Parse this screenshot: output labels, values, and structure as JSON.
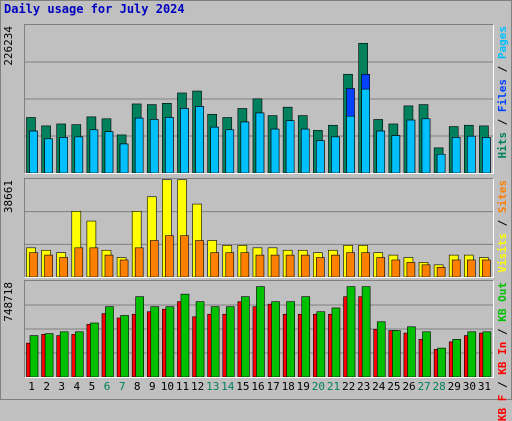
{
  "title": "Daily usage for July 2024",
  "colors": {
    "hits": "#00805c",
    "files": "#0040ff",
    "pages": "#00c0ff",
    "visits": "#ffff00",
    "sites": "#ff8000",
    "kb_in": "#ff0000",
    "kb_out": "#00c000",
    "weekend_label": "#00805c",
    "weekday_label": "#000000"
  },
  "chart_data": [
    {
      "type": "bar",
      "title": "Daily usage for July 2024",
      "ymax_label": "226234",
      "ymax": 226234,
      "legend": [
        {
          "text": "Hits",
          "sep": " / "
        },
        {
          "text": "Files",
          "sep": " / "
        },
        {
          "text": "Pages",
          "sep": ""
        }
      ],
      "categories": [
        "1",
        "2",
        "3",
        "4",
        "5",
        "6",
        "7",
        "8",
        "9",
        "10",
        "11",
        "12",
        "13",
        "14",
        "15",
        "16",
        "17",
        "18",
        "19",
        "20",
        "21",
        "22",
        "23",
        "24",
        "25",
        "26",
        "27",
        "28",
        "29",
        "30",
        "31"
      ],
      "series": [
        {
          "name": "Hits",
          "values": [
            86000,
            73000,
            76000,
            75000,
            87000,
            84000,
            59000,
            107000,
            106000,
            108000,
            124000,
            127000,
            91000,
            86000,
            100000,
            115000,
            89000,
            102000,
            89000,
            66000,
            74000,
            153000,
            201000,
            83000,
            76000,
            104000,
            106000,
            39000,
            72000,
            74000,
            73000
          ]
        },
        {
          "name": "Files",
          "values": [
            65000,
            53000,
            55000,
            56000,
            67000,
            64000,
            45000,
            85000,
            83000,
            86000,
            100000,
            103000,
            71000,
            67000,
            79000,
            93000,
            68000,
            81000,
            68000,
            50000,
            56000,
            131000,
            153000,
            65000,
            58000,
            82000,
            84000,
            29000,
            55000,
            57000,
            55000
          ]
        },
        {
          "name": "Pages",
          "values": [
            65000,
            53000,
            55000,
            56000,
            67000,
            64000,
            45000,
            85000,
            83000,
            86000,
            100000,
            103000,
            71000,
            67000,
            79000,
            93000,
            68000,
            81000,
            68000,
            50000,
            56000,
            88000,
            130000,
            65000,
            58000,
            82000,
            84000,
            29000,
            55000,
            57000,
            55000
          ]
        }
      ]
    },
    {
      "type": "bar",
      "ymax_label": "38661",
      "ymax": 38661,
      "legend": [
        {
          "text": "Visits",
          "sep": " / "
        },
        {
          "text": "Sites",
          "sep": ""
        }
      ],
      "categories": [
        "1",
        "2",
        "3",
        "4",
        "5",
        "6",
        "7",
        "8",
        "9",
        "10",
        "11",
        "12",
        "13",
        "14",
        "15",
        "16",
        "17",
        "18",
        "19",
        "20",
        "21",
        "22",
        "23",
        "24",
        "25",
        "26",
        "27",
        "28",
        "29",
        "30",
        "31"
      ],
      "series": [
        {
          "name": "Visits",
          "values": [
            12000,
            11000,
            10000,
            27000,
            23000,
            11000,
            8000,
            27000,
            33000,
            40000,
            40000,
            30000,
            15000,
            13000,
            13000,
            12000,
            12000,
            11000,
            11000,
            10000,
            11000,
            13000,
            13000,
            10000,
            9000,
            8000,
            6000,
            5000,
            9000,
            9000,
            8000
          ]
        },
        {
          "name": "Sites",
          "values": [
            10000,
            9000,
            8000,
            12000,
            12000,
            9000,
            7000,
            12000,
            15000,
            17000,
            17000,
            15000,
            10000,
            10000,
            10000,
            9000,
            9000,
            9000,
            9000,
            8000,
            9000,
            10000,
            10000,
            8000,
            7000,
            6000,
            5000,
            4000,
            7000,
            7000,
            7000
          ]
        }
      ]
    },
    {
      "type": "bar",
      "ymax_label": "748718",
      "ymax": 748718,
      "legend": [
        {
          "text": "KB F",
          "sep": " / "
        },
        {
          "text": "KB In",
          "sep": " / "
        },
        {
          "text": "KB Out",
          "sep": ""
        }
      ],
      "categories": [
        "1",
        "2",
        "3",
        "4",
        "5",
        "6",
        "7",
        "8",
        "9",
        "10",
        "11",
        "12",
        "13",
        "14",
        "15",
        "16",
        "17",
        "18",
        "19",
        "20",
        "21",
        "22",
        "23",
        "24",
        "25",
        "26",
        "27",
        "28",
        "29",
        "30",
        "31"
      ],
      "series": [
        {
          "name": "KB In",
          "values": [
            270000,
            340000,
            330000,
            340000,
            420000,
            505000,
            470000,
            500000,
            520000,
            540000,
            600000,
            480000,
            500000,
            500000,
            600000,
            560000,
            580000,
            500000,
            500000,
            500000,
            500000,
            640000,
            640000,
            380000,
            370000,
            350000,
            300000,
            220000,
            280000,
            330000,
            350000
          ]
        },
        {
          "name": "KB Out",
          "values": [
            330000,
            345000,
            360000,
            360000,
            430000,
            560000,
            490000,
            640000,
            560000,
            560000,
            660000,
            600000,
            560000,
            560000,
            640000,
            720000,
            600000,
            600000,
            640000,
            520000,
            550000,
            720000,
            720000,
            440000,
            370000,
            400000,
            360000,
            230000,
            300000,
            360000,
            360000
          ]
        }
      ]
    }
  ],
  "x_labels": [
    {
      "text": "1",
      "weekend": false
    },
    {
      "text": "2",
      "weekend": false
    },
    {
      "text": "3",
      "weekend": false
    },
    {
      "text": "4",
      "weekend": false
    },
    {
      "text": "5",
      "weekend": false
    },
    {
      "text": "6",
      "weekend": true
    },
    {
      "text": "7",
      "weekend": true
    },
    {
      "text": "8",
      "weekend": false
    },
    {
      "text": "9",
      "weekend": false
    },
    {
      "text": "10",
      "weekend": false
    },
    {
      "text": "11",
      "weekend": false
    },
    {
      "text": "12",
      "weekend": false
    },
    {
      "text": "13",
      "weekend": true
    },
    {
      "text": "14",
      "weekend": true
    },
    {
      "text": "15",
      "weekend": false
    },
    {
      "text": "16",
      "weekend": false
    },
    {
      "text": "17",
      "weekend": false
    },
    {
      "text": "18",
      "weekend": false
    },
    {
      "text": "19",
      "weekend": false
    },
    {
      "text": "20",
      "weekend": true
    },
    {
      "text": "21",
      "weekend": true
    },
    {
      "text": "22",
      "weekend": false
    },
    {
      "text": "23",
      "weekend": false
    },
    {
      "text": "24",
      "weekend": false
    },
    {
      "text": "25",
      "weekend": false
    },
    {
      "text": "26",
      "weekend": false
    },
    {
      "text": "27",
      "weekend": true
    },
    {
      "text": "28",
      "weekend": true
    },
    {
      "text": "29",
      "weekend": false
    },
    {
      "text": "30",
      "weekend": false
    },
    {
      "text": "31",
      "weekend": false
    }
  ]
}
